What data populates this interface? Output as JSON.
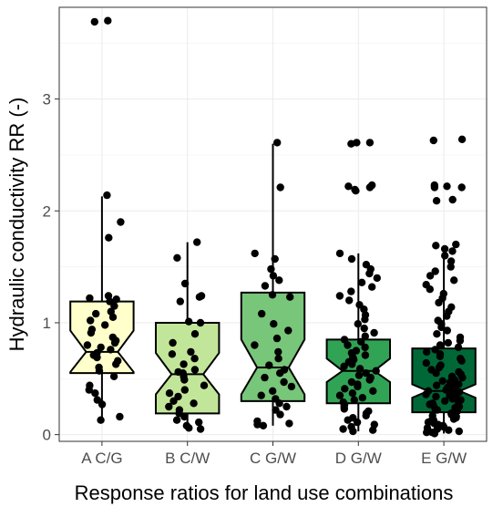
{
  "chart_data": {
    "type": "box",
    "title": "",
    "xlabel": "Response ratios for land use combinations",
    "ylabel": "Hydraulic conductivity RR (-)",
    "ylim": [
      -0.06,
      3.82
    ],
    "yticks": [
      0,
      1,
      2,
      3
    ],
    "ytick_labels": [
      "0",
      "1",
      "2",
      "3"
    ],
    "grid": true,
    "legend": "none",
    "notched": true,
    "categories": [
      "A C/G",
      "B C/W",
      "C G/W",
      "D G/W",
      "E G/W"
    ],
    "box_colors": [
      "#ffffcc",
      "#c2e699",
      "#78c679",
      "#31a354",
      "#006837"
    ],
    "boxes": [
      {
        "name": "A C/G",
        "q1": 0.55,
        "median": 0.74,
        "q3": 1.19,
        "whisker_low": 0.12,
        "whisker_high": 2.13,
        "notch_low": 0.56,
        "notch_high": 0.93
      },
      {
        "name": "B C/W",
        "q1": 0.19,
        "median": 0.54,
        "q3": 1.0,
        "whisker_low": 0.05,
        "whisker_high": 1.72,
        "notch_low": 0.36,
        "notch_high": 0.73
      },
      {
        "name": "C G/W",
        "q1": 0.3,
        "median": 0.6,
        "q3": 1.27,
        "whisker_low": 0.08,
        "whisker_high": 2.6,
        "notch_low": 0.36,
        "notch_high": 0.85
      },
      {
        "name": "D G/W",
        "q1": 0.28,
        "median": 0.57,
        "q3": 0.85,
        "whisker_low": 0.03,
        "whisker_high": 1.62,
        "notch_low": 0.47,
        "notch_high": 0.68
      },
      {
        "name": "E G/W",
        "q1": 0.2,
        "median": 0.39,
        "q3": 0.77,
        "whisker_low": 0.01,
        "whisker_high": 1.64,
        "notch_low": 0.33,
        "notch_high": 0.45
      }
    ],
    "points": [
      {
        "category": "A C/G",
        "y": [
          3.7,
          3.69,
          2.14,
          1.9,
          1.76,
          1.24,
          1.22,
          1.21,
          1.19,
          1.15,
          1.1,
          1.08,
          1.05,
          1.02,
          0.98,
          0.94,
          0.91,
          0.87,
          0.84,
          0.82,
          0.8,
          0.78,
          0.76,
          0.73,
          0.71,
          0.69,
          0.66,
          0.63,
          0.6,
          0.57,
          0.52,
          0.44,
          0.4,
          0.37,
          0.31,
          0.27,
          0.16,
          0.13
        ]
      },
      {
        "category": "B C/W",
        "y": [
          1.72,
          1.58,
          1.35,
          1.24,
          1.23,
          1.19,
          1.01,
          1.0,
          0.9,
          0.82,
          0.74,
          0.72,
          0.68,
          0.63,
          0.58,
          0.56,
          0.55,
          0.52,
          0.49,
          0.44,
          0.4,
          0.37,
          0.34,
          0.3,
          0.28,
          0.25,
          0.22,
          0.19,
          0.16,
          0.13,
          0.11,
          0.08,
          0.06,
          0.05
        ]
      },
      {
        "category": "C G/W",
        "y": [
          2.61,
          2.21,
          1.62,
          1.57,
          1.48,
          1.42,
          1.38,
          1.33,
          1.25,
          1.23,
          1.08,
          0.99,
          0.93,
          0.86,
          0.8,
          0.74,
          0.68,
          0.62,
          0.58,
          0.55,
          0.51,
          0.47,
          0.43,
          0.39,
          0.35,
          0.32,
          0.28,
          0.25,
          0.22,
          0.18,
          0.12,
          0.1,
          0.09,
          0.08
        ]
      },
      {
        "category": "D G/W",
        "y": [
          2.61,
          2.61,
          2.6,
          2.23,
          2.22,
          2.21,
          2.19,
          2.18,
          1.62,
          1.57,
          1.52,
          1.48,
          1.44,
          1.4,
          1.36,
          1.32,
          1.28,
          1.24,
          1.2,
          1.16,
          1.12,
          1.07,
          1.03,
          0.99,
          0.95,
          0.91,
          0.88,
          0.85,
          0.83,
          0.8,
          0.78,
          0.75,
          0.73,
          0.71,
          0.69,
          0.67,
          0.65,
          0.63,
          0.61,
          0.59,
          0.57,
          0.55,
          0.53,
          0.51,
          0.49,
          0.47,
          0.45,
          0.43,
          0.41,
          0.39,
          0.37,
          0.35,
          0.33,
          0.31,
          0.29,
          0.27,
          0.25,
          0.23,
          0.21,
          0.19,
          0.17,
          0.15,
          0.13,
          0.11,
          0.09,
          0.07,
          0.05,
          0.04,
          0.03
        ]
      },
      {
        "category": "E G/W",
        "y": [
          2.64,
          2.63,
          2.23,
          2.22,
          2.21,
          2.21,
          2.1,
          2.09,
          1.7,
          1.69,
          1.66,
          1.64,
          1.6,
          1.55,
          1.5,
          1.46,
          1.42,
          1.38,
          1.34,
          1.3,
          1.26,
          1.22,
          1.18,
          1.14,
          1.1,
          1.06,
          1.02,
          0.99,
          0.96,
          0.93,
          0.9,
          0.87,
          0.84,
          0.82,
          0.8,
          0.78,
          0.76,
          0.74,
          0.72,
          0.7,
          0.68,
          0.66,
          0.64,
          0.62,
          0.6,
          0.58,
          0.56,
          0.55,
          0.54,
          0.52,
          0.51,
          0.49,
          0.48,
          0.47,
          0.45,
          0.44,
          0.43,
          0.42,
          0.41,
          0.4,
          0.39,
          0.38,
          0.37,
          0.36,
          0.35,
          0.34,
          0.33,
          0.32,
          0.31,
          0.3,
          0.29,
          0.28,
          0.27,
          0.26,
          0.25,
          0.24,
          0.23,
          0.22,
          0.21,
          0.2,
          0.19,
          0.18,
          0.17,
          0.16,
          0.15,
          0.14,
          0.13,
          0.12,
          0.11,
          0.1,
          0.09,
          0.08,
          0.07,
          0.06,
          0.05,
          0.04,
          0.03,
          0.02,
          0.02,
          0.01
        ]
      }
    ]
  }
}
